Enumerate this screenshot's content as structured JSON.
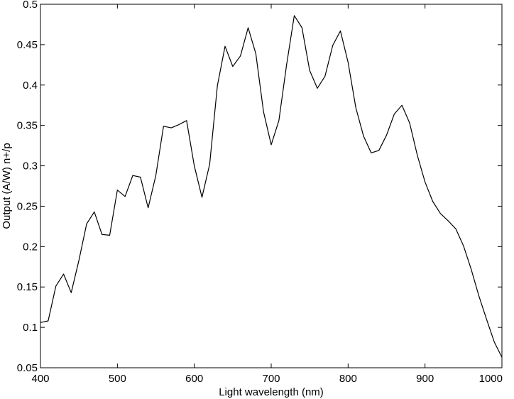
{
  "chart_data": {
    "type": "line",
    "xlabel": "Light wavelength (nm)",
    "ylabel": "Output (A/W) n+/p",
    "xlim": [
      400,
      1000
    ],
    "ylim": [
      0.05,
      0.5
    ],
    "grid": false,
    "x_ticks": [
      400,
      500,
      600,
      700,
      800,
      900,
      1000
    ],
    "y_ticks": [
      0.05,
      0.1,
      0.15,
      0.2,
      0.25,
      0.3,
      0.35,
      0.4,
      0.45,
      0.5
    ],
    "x_tick_labels": [
      "400",
      "500",
      "600",
      "700",
      "800",
      "900",
      "1000"
    ],
    "y_tick_labels": [
      "0.05",
      "0.1",
      "0.15",
      "0.2",
      "0.25",
      "0.3",
      "0.35",
      "0.4",
      "0.45",
      "0.5"
    ],
    "series": [
      {
        "color": "#000000",
        "x": [
          400,
          410,
          420,
          430,
          440,
          450,
          460,
          470,
          480,
          490,
          500,
          510,
          520,
          530,
          540,
          550,
          560,
          570,
          580,
          590,
          600,
          610,
          620,
          630,
          640,
          650,
          660,
          670,
          680,
          690,
          700,
          710,
          720,
          730,
          740,
          750,
          760,
          770,
          780,
          790,
          800,
          810,
          820,
          830,
          840,
          850,
          860,
          870,
          880,
          890,
          900,
          910,
          920,
          930,
          940,
          950,
          960,
          970,
          980,
          990,
          1000
        ],
        "y": [
          0.106,
          0.108,
          0.151,
          0.166,
          0.143,
          0.183,
          0.228,
          0.243,
          0.215,
          0.214,
          0.27,
          0.262,
          0.288,
          0.286,
          0.248,
          0.288,
          0.349,
          0.347,
          0.351,
          0.356,
          0.3,
          0.261,
          0.302,
          0.399,
          0.448,
          0.423,
          0.436,
          0.471,
          0.439,
          0.367,
          0.326,
          0.356,
          0.425,
          0.486,
          0.471,
          0.418,
          0.396,
          0.411,
          0.449,
          0.467,
          0.428,
          0.372,
          0.337,
          0.316,
          0.319,
          0.338,
          0.364,
          0.375,
          0.353,
          0.313,
          0.28,
          0.256,
          0.241,
          0.232,
          0.222,
          0.201,
          0.172,
          0.139,
          0.11,
          0.082,
          0.063
        ]
      }
    ]
  }
}
